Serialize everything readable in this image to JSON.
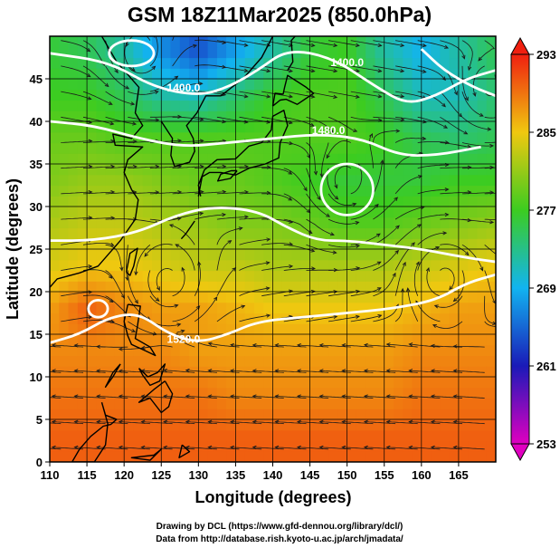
{
  "title": "GSM 18Z11Mar2025 (850.0hPa)",
  "credits": {
    "line1": "Drawing by DCL (https://www.gfd-dennou.org/library/dcl/)",
    "line2": "Data from http://database.rish.kyoto-u.ac.jp/arch/jmadata/"
  },
  "chart_data": {
    "type": "heatmap",
    "title": "GSM 18Z11Mar2025 (850.0hPa)",
    "xlabel": "Longitude (degrees)",
    "ylabel": "Latitude (degrees)",
    "xlim": [
      110,
      170
    ],
    "ylim": [
      0,
      50
    ],
    "x_ticks": [
      110,
      115,
      120,
      125,
      130,
      135,
      140,
      145,
      150,
      155,
      160,
      165
    ],
    "y_ticks": [
      0,
      5,
      10,
      15,
      20,
      25,
      30,
      35,
      40,
      45
    ],
    "grid": true,
    "colorbar": {
      "range": [
        253,
        293
      ],
      "ticks": [
        253,
        261,
        269,
        277,
        285,
        293
      ],
      "colors": [
        "#e000c0",
        "#1a1ab8",
        "#12b4f0",
        "#3ccc20",
        "#f0c810",
        "#f02010"
      ]
    },
    "temperature_field": [
      {
        "lat": 48,
        "values": [
          276,
          275,
          272,
          267,
          264,
          268,
          272,
          276,
          277,
          272,
          269,
          272,
          275
        ]
      },
      {
        "lat": 43,
        "values": [
          277,
          277,
          275,
          272,
          271,
          274,
          277,
          278,
          278,
          275,
          271,
          271,
          274
        ]
      },
      {
        "lat": 38,
        "values": [
          279,
          279,
          278,
          278,
          278,
          278,
          278,
          278,
          278,
          277,
          275,
          274,
          275
        ]
      },
      {
        "lat": 33,
        "values": [
          280,
          281,
          281,
          280,
          279,
          279,
          278,
          277,
          276,
          276,
          276,
          277,
          277
        ]
      },
      {
        "lat": 28,
        "values": [
          282,
          283,
          283,
          282,
          281,
          280,
          280,
          279,
          278,
          278,
          279,
          280,
          281
        ]
      },
      {
        "lat": 23,
        "values": [
          284,
          285,
          285,
          284,
          283,
          283,
          282,
          282,
          282,
          282,
          283,
          284,
          285
        ]
      },
      {
        "lat": 18,
        "values": [
          287,
          290,
          288,
          287,
          287,
          286,
          285,
          285,
          285,
          285,
          286,
          287,
          287
        ]
      },
      {
        "lat": 13,
        "values": [
          288,
          288,
          288,
          288,
          287,
          287,
          287,
          287,
          287,
          287,
          288,
          288,
          288
        ]
      },
      {
        "lat": 8,
        "values": [
          289,
          289,
          289,
          289,
          289,
          288,
          288,
          288,
          288,
          288,
          289,
          289,
          289
        ]
      },
      {
        "lat": 3,
        "values": [
          290,
          290,
          290,
          290,
          290,
          290,
          290,
          290,
          290,
          290,
          290,
          290,
          290
        ]
      }
    ],
    "field_lons": [
      110,
      115,
      120,
      125,
      130,
      135,
      140,
      145,
      150,
      155,
      160,
      165,
      170
    ],
    "contour_labels": [
      {
        "text": "1400.0",
        "lon": 150,
        "lat": 46.5
      },
      {
        "text": "1400.0",
        "lon": 128,
        "lat": 43.5
      },
      {
        "text": "1480.0",
        "lon": 147.5,
        "lat": 38.5
      },
      {
        "text": "1520.0",
        "lon": 128,
        "lat": 14
      }
    ],
    "contours": [
      [
        [
          110,
          48
        ],
        [
          118,
          47
        ],
        [
          124,
          44
        ],
        [
          130,
          43
        ],
        [
          134,
          44
        ],
        [
          138,
          46
        ],
        [
          142,
          48.5
        ],
        [
          148,
          47.5
        ],
        [
          154,
          44
        ],
        [
          158,
          42
        ],
        [
          162,
          43
        ],
        [
          166,
          45
        ],
        [
          170,
          46
        ]
      ],
      [
        [
          110,
          40
        ],
        [
          116,
          39.5
        ],
        [
          122,
          38
        ],
        [
          128,
          37
        ],
        [
          134,
          37.5
        ],
        [
          140,
          38
        ],
        [
          146,
          38.5
        ],
        [
          152,
          38
        ],
        [
          157,
          36
        ],
        [
          162,
          36
        ],
        [
          168,
          37
        ]
      ],
      [
        [
          110,
          26
        ],
        [
          116,
          26
        ],
        [
          122,
          27
        ],
        [
          127,
          29
        ],
        [
          132,
          30
        ],
        [
          138,
          29.5
        ],
        [
          142,
          27.5
        ],
        [
          146,
          26
        ],
        [
          150,
          26
        ],
        [
          155,
          25.5
        ],
        [
          160,
          25
        ],
        [
          166,
          24
        ],
        [
          170,
          23.5
        ]
      ],
      [
        [
          110,
          14
        ],
        [
          114,
          15
        ],
        [
          118,
          17
        ],
        [
          122,
          17.5
        ],
        [
          126,
          15
        ],
        [
          130,
          14
        ],
        [
          134,
          15
        ],
        [
          138,
          16.5
        ],
        [
          144,
          17
        ],
        [
          150,
          17.5
        ],
        [
          156,
          18
        ],
        [
          162,
          19
        ],
        [
          166,
          21
        ],
        [
          170,
          22
        ]
      ],
      [
        [
          160,
          48.5
        ],
        [
          163,
          46
        ],
        [
          167,
          44
        ],
        [
          170,
          43
        ]
      ]
    ],
    "closed_contours": [
      {
        "lon": 150,
        "lat": 32,
        "rx": 3.5,
        "ry": 3
      },
      {
        "lon": 116.5,
        "lat": 18,
        "rx": 1.3,
        "ry": 1.0
      },
      {
        "lon": 121,
        "lat": 48,
        "rx": 3,
        "ry": 1.5
      }
    ],
    "coastlines": [
      [
        [
          117,
          50
        ],
        [
          119,
          47
        ],
        [
          122,
          44
        ],
        [
          121.5,
          41
        ],
        [
          122.5,
          39.5
        ],
        [
          121,
          38
        ],
        [
          118.5,
          38.5
        ],
        [
          118.8,
          37.2
        ],
        [
          122.5,
          37
        ],
        [
          120.5,
          35.5
        ],
        [
          120,
          34
        ],
        [
          121,
          32
        ],
        [
          121.9,
          30.8
        ],
        [
          121.5,
          28.5
        ],
        [
          119.5,
          26
        ],
        [
          118,
          24.5
        ],
        [
          116.5,
          23
        ],
        [
          114,
          22.2
        ],
        [
          111,
          21.5
        ],
        [
          110,
          20.5
        ]
      ],
      [
        [
          125,
          40
        ],
        [
          126.5,
          38
        ],
        [
          126.3,
          36
        ],
        [
          126.8,
          34.7
        ],
        [
          128.8,
          35.2
        ],
        [
          129.5,
          36.5
        ],
        [
          129.3,
          38
        ],
        [
          128.4,
          39.5
        ],
        [
          129.8,
          41
        ],
        [
          131,
          43
        ],
        [
          133,
          43
        ],
        [
          136,
          45
        ],
        [
          138.5,
          47.5
        ],
        [
          140,
          50
        ]
      ],
      [
        [
          130,
          31.2
        ],
        [
          130.5,
          33.5
        ],
        [
          131.5,
          34
        ],
        [
          133,
          34
        ],
        [
          135,
          33.7
        ],
        [
          136.8,
          34.5
        ],
        [
          139,
          35
        ],
        [
          140.8,
          35.7
        ],
        [
          141,
          37.5
        ],
        [
          142,
          39.5
        ],
        [
          141.5,
          41.3
        ],
        [
          140,
          40.6
        ],
        [
          139.8,
          39
        ],
        [
          138.5,
          37.5
        ],
        [
          136.8,
          37.1
        ],
        [
          135,
          35.6
        ],
        [
          132.5,
          35.5
        ],
        [
          130.8,
          34.3
        ],
        [
          130,
          32.5
        ],
        [
          130.3,
          31.2
        ]
      ],
      [
        [
          140,
          41.8
        ],
        [
          141,
          42.5
        ],
        [
          141.8,
          42.6
        ],
        [
          143.3,
          42
        ],
        [
          145.5,
          43.3
        ],
        [
          144.5,
          44
        ],
        [
          142,
          45.4
        ],
        [
          141.6,
          44
        ],
        [
          141.4,
          43.2
        ],
        [
          140.3,
          43.3
        ],
        [
          140,
          41.8
        ]
      ],
      [
        [
          142,
          46
        ],
        [
          142.7,
          47
        ],
        [
          142.5,
          49.5
        ],
        [
          143,
          50
        ]
      ],
      [
        [
          120.3,
          22.3
        ],
        [
          120.8,
          24.5
        ],
        [
          121.8,
          25.1
        ],
        [
          121.3,
          23
        ],
        [
          120.8,
          21.9
        ],
        [
          120.3,
          22.3
        ]
      ],
      [
        [
          120.5,
          18.5
        ],
        [
          122.2,
          18.3
        ],
        [
          121.8,
          16
        ],
        [
          121.5,
          14.5
        ],
        [
          123.5,
          13.5
        ],
        [
          124.2,
          12.5
        ],
        [
          123,
          13
        ],
        [
          121,
          13.8
        ],
        [
          120.5,
          14.8
        ],
        [
          120,
          16.5
        ],
        [
          120.5,
          18.5
        ]
      ],
      [
        [
          122,
          11
        ],
        [
          123.2,
          10
        ],
        [
          124.5,
          10.5
        ],
        [
          125.5,
          11.5
        ],
        [
          124.8,
          9.5
        ],
        [
          123.5,
          9
        ],
        [
          122.5,
          10.2
        ],
        [
          122,
          11
        ]
      ],
      [
        [
          125.5,
          9.5
        ],
        [
          126.5,
          8
        ],
        [
          126,
          6.5
        ],
        [
          125,
          5.8
        ],
        [
          123.5,
          7.5
        ],
        [
          122,
          7
        ],
        [
          124,
          8.5
        ],
        [
          125.5,
          9.5
        ]
      ],
      [
        [
          119.5,
          11.5
        ],
        [
          118.5,
          10
        ],
        [
          117.5,
          8.8
        ],
        [
          118.5,
          10.5
        ],
        [
          119.5,
          11.5
        ]
      ],
      [
        [
          117,
          7
        ],
        [
          117.5,
          5.5
        ],
        [
          119,
          5
        ],
        [
          118.2,
          4.4
        ],
        [
          117.2,
          4.2
        ],
        [
          115.5,
          3
        ],
        [
          114,
          1.5
        ],
        [
          113,
          0
        ],
        [
          116,
          0
        ],
        [
          117.5,
          2
        ],
        [
          117.8,
          4.5
        ],
        [
          117,
          7
        ]
      ],
      [
        [
          127.8,
          2
        ],
        [
          128.8,
          1.2
        ],
        [
          127.4,
          0.5
        ],
        [
          127.8,
          2
        ]
      ],
      [
        [
          124,
          0.8
        ],
        [
          125,
          1.5
        ],
        [
          123.5,
          0.2
        ],
        [
          121,
          0.5
        ],
        [
          124,
          0.8
        ]
      ],
      [
        [
          135.2,
          34.2
        ],
        [
          134.4,
          34.2
        ],
        [
          133,
          33.8
        ],
        [
          132.6,
          33
        ],
        [
          134.3,
          33.3
        ],
        [
          135.2,
          34.2
        ]
      ],
      [
        [
          127.7,
          26.2
        ],
        [
          128.3,
          26.8
        ],
        [
          129.5,
          28.3
        ]
      ]
    ],
    "vortices": [
      {
        "lon": 150,
        "lat": 32,
        "r": 3.5,
        "dir": 1
      },
      {
        "lon": 126,
        "lat": 21,
        "r": 3.2,
        "dir": 1
      },
      {
        "lon": 122,
        "lat": 47,
        "r": 3.0,
        "dir": 1
      },
      {
        "lon": 169,
        "lat": 43,
        "r": 3.0,
        "dir": 1
      },
      {
        "lon": 163,
        "lat": 22,
        "r": 3.0,
        "dir": -1
      }
    ]
  }
}
